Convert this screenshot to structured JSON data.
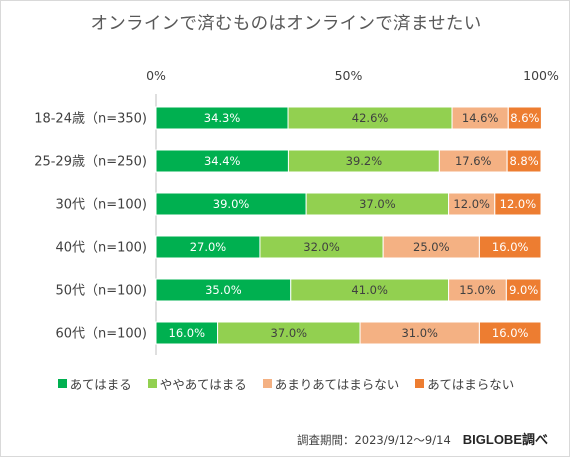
{
  "chart_data": {
    "type": "bar",
    "orientation": "horizontal",
    "stacked": true,
    "title": "オンラインで済むものはオンラインで済ませたい",
    "x_ticks": [
      "0%",
      "50%",
      "100%"
    ],
    "xlim": [
      0,
      100
    ],
    "grid": false,
    "legend_position": "bottom",
    "categories": [
      "18-24歳（n=350)",
      "25-29歳（n=250)",
      "30代（n=100)",
      "40代（n=100)",
      "50代（n=100)",
      "60代（n=100)"
    ],
    "series": [
      {
        "name": "あてはまる",
        "color": "#00b050",
        "label_color": "#ffffff",
        "values": [
          34.3,
          34.4,
          39.0,
          27.0,
          35.0,
          16.0
        ],
        "labels": [
          "34.3%",
          "34.4%",
          "39.0%",
          "27.0%",
          "35.0%",
          "16.0%"
        ]
      },
      {
        "name": "ややあてはまる",
        "color": "#92d050",
        "label_color": "#404040",
        "values": [
          42.6,
          39.2,
          37.0,
          32.0,
          41.0,
          37.0
        ],
        "labels": [
          "42.6%",
          "39.2%",
          "37.0%",
          "32.0%",
          "41.0%",
          "37.0%"
        ]
      },
      {
        "name": "あまりあてはまらない",
        "color": "#f4b183",
        "label_color": "#404040",
        "values": [
          14.6,
          17.6,
          12.0,
          25.0,
          15.0,
          31.0
        ],
        "labels": [
          "14.6%",
          "17.6%",
          "12.0%",
          "25.0%",
          "15.0%",
          "31.0%"
        ]
      },
      {
        "name": "あてはまらない",
        "color": "#ed7d31",
        "label_color": "#ffffff",
        "values": [
          8.6,
          8.8,
          12.0,
          16.0,
          9.0,
          16.0
        ],
        "labels": [
          "8.6%",
          "8.8%",
          "12.0%",
          "16.0%",
          "9.0%",
          "16.0%"
        ]
      }
    ]
  },
  "footer": {
    "period": "調査期間：2023/9/12～9/14",
    "brand": "BIGLOBE調べ"
  }
}
